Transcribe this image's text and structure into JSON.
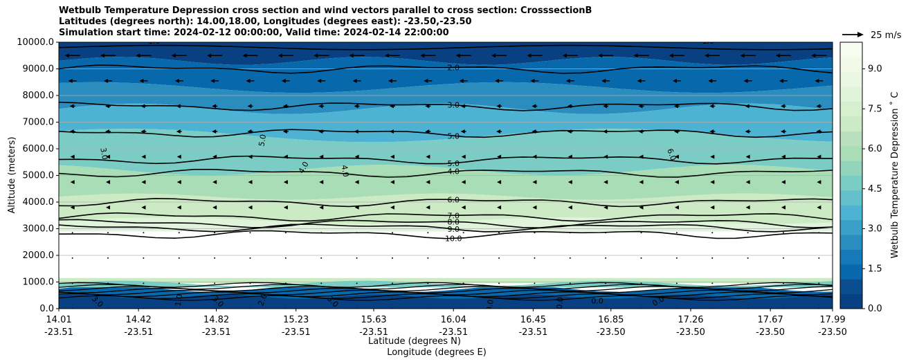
{
  "title": {
    "line1": "Wetbulb Temperature Depression cross section and wind vectors parallel to cross section: CrosssectionB",
    "line2": "Latitudes (degrees north): 14.00,18.00, Longitudes (degrees east): -23.50,-23.50",
    "line3": "Simulation start time: 2024-02-12 00:00:00, Valid time: 2024-02-14 22:00:00"
  },
  "colors": {
    "c0": "#084081",
    "c1": "#0868ac",
    "c2": "#2b8cbe",
    "c3": "#4eb3d3",
    "c4": "#7bccc4",
    "c5": "#a8ddb5",
    "c6": "#ccebc5",
    "c7": "#e0f3db",
    "c8": "#f7fcf0"
  },
  "chart_data": {
    "type": "contourf_cross_section",
    "ylabel": "Altitude (meters)",
    "xlabel_lat": "Latitude (degrees N)",
    "xlabel_lon": "Longitude (degrees E)",
    "ylim": [
      0,
      10000
    ],
    "y_ticks": [
      0,
      1000,
      2000,
      3000,
      4000,
      5000,
      6000,
      7000,
      8000,
      9000,
      10000
    ],
    "y_tick_labels": [
      "0.0",
      "1000.0",
      "2000.0",
      "3000.0",
      "4000.0",
      "5000.0",
      "6000.0",
      "7000.0",
      "8000.0",
      "9000.0",
      "10000.0"
    ],
    "xlim": [
      14.01,
      17.99
    ],
    "x_ticks": [
      14.01,
      14.42,
      14.82,
      15.23,
      15.63,
      16.04,
      16.45,
      16.85,
      17.26,
      17.67,
      17.99
    ],
    "x_tick_lat": [
      "14.01",
      "14.42",
      "14.82",
      "15.23",
      "15.63",
      "16.04",
      "16.45",
      "16.85",
      "17.26",
      "17.67",
      "17.99"
    ],
    "x_tick_lon": [
      "-23.51",
      "-23.51",
      "-23.51",
      "-23.51",
      "-23.51",
      "-23.51",
      "-23.51",
      "-23.50",
      "-23.50",
      "-23.50",
      "-23.50"
    ],
    "colorbar": {
      "label": "Wetbulb Temperature Depression ˚ C",
      "range": [
        0,
        10
      ],
      "ticks": [
        "0.0",
        "1.5",
        "3.0",
        "4.5",
        "6.0",
        "7.5",
        "9.0"
      ],
      "tick_values": [
        0,
        1.5,
        3.0,
        4.5,
        6.0,
        7.5,
        9.0
      ]
    },
    "wind_key": {
      "label": "25 m/s",
      "speed": 25
    },
    "contour_levels": [
      {
        "level": 2.0,
        "label": "2.0",
        "altitude": 9000
      },
      {
        "level": 3.0,
        "label": "3.0",
        "altitude": 7600
      },
      {
        "level": 5.0,
        "label": "5.0",
        "altitude": 6600
      },
      {
        "level": 5.0,
        "label": "5.0",
        "altitude": 5600
      },
      {
        "level": 4.0,
        "label": "4.0",
        "altitude": 5100
      },
      {
        "level": 6.0,
        "label": "6.0",
        "altitude": 4000
      },
      {
        "level": 7.0,
        "label": "7.0",
        "altitude": 3450
      },
      {
        "level": 8.0,
        "label": "8.0",
        "altitude": 3200
      },
      {
        "level": 9.0,
        "label": "9.0",
        "altitude": 3050
      },
      {
        "level": 10.0,
        "label": "10.0",
        "altitude": 2800
      }
    ],
    "extra_labels": [
      {
        "label": "1.0",
        "lat": 14.5,
        "alt": 9950,
        "rot": 0
      },
      {
        "label": "1.0",
        "lat": 17.35,
        "alt": 9950,
        "rot": 0
      },
      {
        "label": "3.0",
        "lat": 14.23,
        "alt": 5800,
        "rot": 80
      },
      {
        "label": "5.0",
        "lat": 15.07,
        "alt": 6300,
        "rot": -80
      },
      {
        "label": "4.0",
        "lat": 15.28,
        "alt": 5250,
        "rot": -60
      },
      {
        "label": "4.0",
        "lat": 15.47,
        "alt": 5150,
        "rot": 80
      },
      {
        "label": "6.0",
        "lat": 17.15,
        "alt": 5750,
        "rot": 70
      },
      {
        "label": "3.0",
        "lat": 14.2,
        "alt": 200,
        "rot": 45
      },
      {
        "label": "1.0",
        "lat": 14.64,
        "alt": 300,
        "rot": -80
      },
      {
        "label": "3.0",
        "lat": 14.82,
        "alt": 200,
        "rot": 45
      },
      {
        "label": "2.0",
        "lat": 15.07,
        "alt": 300,
        "rot": -70
      },
      {
        "label": "3.0",
        "lat": 15.41,
        "alt": 200,
        "rot": 45
      },
      {
        "label": "0.0",
        "lat": 16.24,
        "alt": 100,
        "rot": -80
      },
      {
        "label": "0.0",
        "lat": 16.6,
        "alt": 200,
        "rot": -85
      },
      {
        "label": "0.0",
        "lat": 16.78,
        "alt": 200,
        "rot": 0
      },
      {
        "label": "0.0",
        "lat": 17.1,
        "alt": 200,
        "rot": -30
      }
    ]
  }
}
